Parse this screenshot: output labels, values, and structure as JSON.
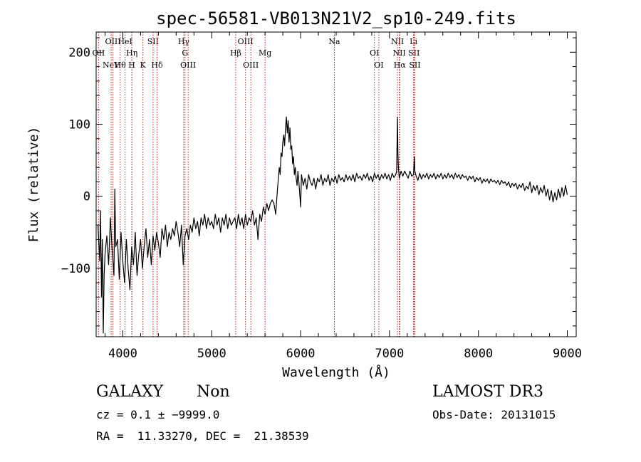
{
  "chart_data": {
    "type": "line",
    "title": "spec-56581-VB013N21V2_sp10-249.fits",
    "xlabel": "Wavelength (Å)",
    "ylabel": "Flux (relative)",
    "xlim": [
      3700,
      9100
    ],
    "ylim": [
      -195,
      228
    ],
    "x_ticks": [
      4000,
      5000,
      6000,
      7000,
      8000,
      9000
    ],
    "y_ticks": [
      -100,
      0,
      100,
      200
    ],
    "x_tick_labels": [
      "4000",
      "5000",
      "6000",
      "7000",
      "8000",
      "9000"
    ],
    "y_tick_labels": [
      "−100",
      "0",
      "100",
      "200"
    ],
    "grid": false,
    "series": [
      {
        "color": "#000000",
        "points": [
          [
            3720,
            -40
          ],
          [
            3740,
            -90
          ],
          [
            3750,
            -20
          ],
          [
            3760,
            -140
          ],
          [
            3770,
            -60
          ],
          [
            3780,
            -190
          ],
          [
            3790,
            -110
          ],
          [
            3800,
            -80
          ],
          [
            3820,
            -55
          ],
          [
            3840,
            -95
          ],
          [
            3860,
            -30
          ],
          [
            3880,
            -75
          ],
          [
            3900,
            -110
          ],
          [
            3910,
            10
          ],
          [
            3920,
            -70
          ],
          [
            3940,
            -60
          ],
          [
            3960,
            -115
          ],
          [
            3980,
            -50
          ],
          [
            4000,
            -90
          ],
          [
            4020,
            -120
          ],
          [
            4040,
            -60
          ],
          [
            4060,
            -100
          ],
          [
            4080,
            -130
          ],
          [
            4100,
            -70
          ],
          [
            4120,
            -95
          ],
          [
            4140,
            -50
          ],
          [
            4160,
            -110
          ],
          [
            4180,
            -80
          ],
          [
            4200,
            -60
          ],
          [
            4220,
            -100
          ],
          [
            4240,
            -70
          ],
          [
            4260,
            -45
          ],
          [
            4280,
            -85
          ],
          [
            4300,
            -60
          ],
          [
            4320,
            -95
          ],
          [
            4340,
            -55
          ],
          [
            4360,
            -75
          ],
          [
            4380,
            -50
          ],
          [
            4400,
            -65
          ],
          [
            4420,
            -85
          ],
          [
            4440,
            -45
          ],
          [
            4460,
            -60
          ],
          [
            4480,
            -40
          ],
          [
            4500,
            -70
          ],
          [
            4520,
            -50
          ],
          [
            4540,
            -60
          ],
          [
            4560,
            -45
          ],
          [
            4580,
            -55
          ],
          [
            4600,
            -35
          ],
          [
            4620,
            -50
          ],
          [
            4640,
            -70
          ],
          [
            4660,
            -40
          ],
          [
            4680,
            -95
          ],
          [
            4700,
            -55
          ],
          [
            4720,
            -45
          ],
          [
            4740,
            -60
          ],
          [
            4760,
            -40
          ],
          [
            4780,
            -50
          ],
          [
            4800,
            -30
          ],
          [
            4820,
            -45
          ],
          [
            4840,
            -35
          ],
          [
            4860,
            -55
          ],
          [
            4880,
            -30
          ],
          [
            4900,
            -40
          ],
          [
            4920,
            -25
          ],
          [
            4940,
            -45
          ],
          [
            4960,
            -30
          ],
          [
            4980,
            -40
          ],
          [
            5000,
            -35
          ],
          [
            5020,
            -45
          ],
          [
            5040,
            -25
          ],
          [
            5060,
            -40
          ],
          [
            5080,
            -30
          ],
          [
            5100,
            -50
          ],
          [
            5120,
            -30
          ],
          [
            5140,
            -40
          ],
          [
            5160,
            -25
          ],
          [
            5180,
            -45
          ],
          [
            5200,
            -30
          ],
          [
            5220,
            -40
          ],
          [
            5240,
            -35
          ],
          [
            5260,
            -30
          ],
          [
            5280,
            -45
          ],
          [
            5300,
            -25
          ],
          [
            5320,
            -40
          ],
          [
            5340,
            -30
          ],
          [
            5360,
            -45
          ],
          [
            5380,
            -25
          ],
          [
            5400,
            -40
          ],
          [
            5420,
            -30
          ],
          [
            5440,
            -35
          ],
          [
            5460,
            -20
          ],
          [
            5480,
            -40
          ],
          [
            5500,
            -30
          ],
          [
            5520,
            -60
          ],
          [
            5540,
            -25
          ],
          [
            5560,
            -35
          ],
          [
            5580,
            -15
          ],
          [
            5600,
            -25
          ],
          [
            5620,
            -10
          ],
          [
            5640,
            -20
          ],
          [
            5660,
            -10
          ],
          [
            5680,
            -5
          ],
          [
            5700,
            -10
          ],
          [
            5720,
            -25
          ],
          [
            5740,
            10
          ],
          [
            5760,
            40
          ],
          [
            5770,
            30
          ],
          [
            5780,
            60
          ],
          [
            5790,
            55
          ],
          [
            5800,
            75
          ],
          [
            5810,
            85
          ],
          [
            5820,
            70
          ],
          [
            5830,
            95
          ],
          [
            5840,
            110
          ],
          [
            5850,
            88
          ],
          [
            5860,
            105
          ],
          [
            5870,
            75
          ],
          [
            5880,
            95
          ],
          [
            5890,
            65
          ],
          [
            5900,
            70
          ],
          [
            5910,
            45
          ],
          [
            5920,
            55
          ],
          [
            5930,
            30
          ],
          [
            5940,
            40
          ],
          [
            5950,
            25
          ],
          [
            5960,
            15
          ],
          [
            5970,
            35
          ],
          [
            5980,
            20
          ],
          [
            5990,
            5
          ],
          [
            6000,
            -15
          ],
          [
            6010,
            30
          ],
          [
            6030,
            15
          ],
          [
            6050,
            25
          ],
          [
            6070,
            10
          ],
          [
            6090,
            30
          ],
          [
            6110,
            20
          ],
          [
            6130,
            15
          ],
          [
            6150,
            25
          ],
          [
            6170,
            10
          ],
          [
            6190,
            25
          ],
          [
            6210,
            20
          ],
          [
            6230,
            30
          ],
          [
            6250,
            15
          ],
          [
            6270,
            25
          ],
          [
            6290,
            20
          ],
          [
            6310,
            30
          ],
          [
            6330,
            15
          ],
          [
            6350,
            25
          ],
          [
            6370,
            20
          ],
          [
            6390,
            28
          ],
          [
            6410,
            18
          ],
          [
            6430,
            30
          ],
          [
            6450,
            22
          ],
          [
            6470,
            26
          ],
          [
            6490,
            20
          ],
          [
            6510,
            30
          ],
          [
            6530,
            22
          ],
          [
            6550,
            28
          ],
          [
            6570,
            22
          ],
          [
            6590,
            30
          ],
          [
            6610,
            20
          ],
          [
            6630,
            32
          ],
          [
            6650,
            25
          ],
          [
            6670,
            28
          ],
          [
            6690,
            22
          ],
          [
            6710,
            30
          ],
          [
            6730,
            25
          ],
          [
            6750,
            32
          ],
          [
            6770,
            22
          ],
          [
            6790,
            28
          ],
          [
            6810,
            20
          ],
          [
            6830,
            32
          ],
          [
            6850,
            25
          ],
          [
            6870,
            30
          ],
          [
            6890,
            22
          ],
          [
            6910,
            30
          ],
          [
            6930,
            25
          ],
          [
            6950,
            32
          ],
          [
            6970,
            24
          ],
          [
            6990,
            30
          ],
          [
            7010,
            22
          ],
          [
            7030,
            32
          ],
          [
            7050,
            26
          ],
          [
            7070,
            30
          ],
          [
            7080,
            35
          ],
          [
            7090,
            110
          ],
          [
            7095,
            60
          ],
          [
            7100,
            40
          ],
          [
            7110,
            25
          ],
          [
            7130,
            35
          ],
          [
            7150,
            28
          ],
          [
            7170,
            35
          ],
          [
            7190,
            30
          ],
          [
            7210,
            25
          ],
          [
            7230,
            35
          ],
          [
            7250,
            28
          ],
          [
            7270,
            30
          ],
          [
            7280,
            55
          ],
          [
            7285,
            35
          ],
          [
            7300,
            28
          ],
          [
            7320,
            22
          ],
          [
            7340,
            32
          ],
          [
            7360,
            24
          ],
          [
            7380,
            30
          ],
          [
            7400,
            26
          ],
          [
            7420,
            32
          ],
          [
            7440,
            24
          ],
          [
            7460,
            30
          ],
          [
            7480,
            26
          ],
          [
            7500,
            32
          ],
          [
            7520,
            24
          ],
          [
            7540,
            30
          ],
          [
            7560,
            26
          ],
          [
            7580,
            32
          ],
          [
            7600,
            24
          ],
          [
            7620,
            30
          ],
          [
            7640,
            25
          ],
          [
            7660,
            32
          ],
          [
            7680,
            26
          ],
          [
            7700,
            30
          ],
          [
            7720,
            24
          ],
          [
            7740,
            32
          ],
          [
            7760,
            26
          ],
          [
            7780,
            30
          ],
          [
            7800,
            24
          ],
          [
            7820,
            30
          ],
          [
            7840,
            26
          ],
          [
            7860,
            28
          ],
          [
            7880,
            22
          ],
          [
            7900,
            28
          ],
          [
            7920,
            24
          ],
          [
            7940,
            28
          ],
          [
            7960,
            20
          ],
          [
            7980,
            26
          ],
          [
            8000,
            22
          ],
          [
            8020,
            26
          ],
          [
            8040,
            18
          ],
          [
            8060,
            24
          ],
          [
            8080,
            20
          ],
          [
            8100,
            24
          ],
          [
            8120,
            18
          ],
          [
            8140,
            24
          ],
          [
            8160,
            20
          ],
          [
            8180,
            22
          ],
          [
            8200,
            18
          ],
          [
            8220,
            22
          ],
          [
            8240,
            16
          ],
          [
            8260,
            22
          ],
          [
            8280,
            18
          ],
          [
            8300,
            20
          ],
          [
            8320,
            15
          ],
          [
            8340,
            20
          ],
          [
            8360,
            12
          ],
          [
            8380,
            18
          ],
          [
            8400,
            14
          ],
          [
            8420,
            18
          ],
          [
            8440,
            10
          ],
          [
            8460,
            16
          ],
          [
            8480,
            12
          ],
          [
            8500,
            18
          ],
          [
            8520,
            8
          ],
          [
            8540,
            14
          ],
          [
            8560,
            10
          ],
          [
            8580,
            20
          ],
          [
            8600,
            5
          ],
          [
            8620,
            15
          ],
          [
            8640,
            8
          ],
          [
            8660,
            15
          ],
          [
            8680,
            2
          ],
          [
            8700,
            12
          ],
          [
            8720,
            5
          ],
          [
            8740,
            15
          ],
          [
            8760,
            0
          ],
          [
            8780,
            10
          ],
          [
            8800,
            -5
          ],
          [
            8820,
            8
          ],
          [
            8840,
            -8
          ],
          [
            8860,
            5
          ],
          [
            8880,
            -5
          ],
          [
            8900,
            10
          ],
          [
            8920,
            -2
          ],
          [
            8940,
            12
          ],
          [
            8960,
            0
          ],
          [
            8980,
            15
          ],
          [
            9000,
            2
          ]
        ]
      }
    ],
    "line_markers": [
      {
        "wavelength": 3727,
        "label": "OII",
        "row": 1
      },
      {
        "wavelength": 3869,
        "label": "NeV",
        "row": 3
      },
      {
        "wavelength": 3889,
        "label": "OIII",
        "row": 0
      },
      {
        "wavelength": 3970,
        "label": "Hθ",
        "row": 2
      },
      {
        "wavelength": 4102,
        "label": "Hη",
        "row": 1
      },
      {
        "wavelength": 4026,
        "label": "HeI",
        "row": 0
      },
      {
        "wavelength": 4101,
        "label": "H",
        "row": 2
      },
      {
        "wavelength": 4226,
        "label": "K",
        "row": 2
      },
      {
        "wavelength": 4340,
        "label": "SII",
        "row": 0
      },
      {
        "wavelength": 4385,
        "label": "Hδ",
        "row": 2
      },
      {
        "wavelength": 4685,
        "label": "Hγ",
        "row": 0
      },
      {
        "wavelength": 4700,
        "label": "G",
        "row": 1
      },
      {
        "wavelength": 4735,
        "label": "OIII",
        "row": 2
      },
      {
        "wavelength": 5270,
        "label": "Hβ",
        "row": 1
      },
      {
        "wavelength": 5380,
        "label": "OIII",
        "row": 0
      },
      {
        "wavelength": 5440,
        "label": "OIII",
        "row": 2
      },
      {
        "wavelength": 5600,
        "label": "Mg",
        "row": 1
      },
      {
        "wavelength": 6380,
        "label": "Na",
        "row": 0
      },
      {
        "wavelength": 6830,
        "label": "OI",
        "row": 1
      },
      {
        "wavelength": 6880,
        "label": "OI",
        "row": 2
      },
      {
        "wavelength": 7090,
        "label": "NII",
        "row": 0
      },
      {
        "wavelength": 7110,
        "label": "NII",
        "row": 1
      },
      {
        "wavelength": 7115,
        "label": "Hα",
        "row": 2
      },
      {
        "wavelength": 7270,
        "label": "Li",
        "row": 0
      },
      {
        "wavelength": 7275,
        "label": "SII",
        "row": 1
      },
      {
        "wavelength": 7285,
        "label": "SII",
        "row": 2
      }
    ]
  },
  "info": {
    "class_label": "GALAXY",
    "subclass_label": "Non",
    "survey": "LAMOST DR3",
    "cz_line": "cz = 0.1 ± −9999.0",
    "obs_date_line": "Obs-Date: 20131015",
    "radec_line": "RA =  11.33270, DEC =  21.38539"
  }
}
